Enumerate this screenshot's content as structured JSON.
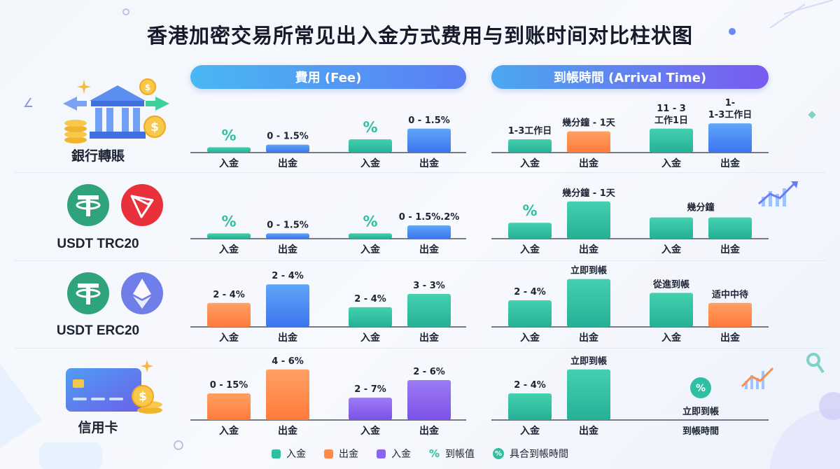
{
  "title": "香港加密交易所常见出入金方式费用与到账时间对比柱状图",
  "headers": {
    "fee": "費用 (Fee)",
    "time": "到帳時間 (Arrival Time)"
  },
  "rows": [
    {
      "label": "銀行轉賬"
    },
    {
      "label": "USDT TRC20"
    },
    {
      "label": "USDT ERC20"
    },
    {
      "label": "信用卡"
    }
  ],
  "legend": [
    {
      "kind": "swatch",
      "color": "#2fbfa3",
      "label": "入金"
    },
    {
      "kind": "swatch",
      "color": "#ff8a4c",
      "label": "出金"
    },
    {
      "kind": "swatch",
      "color": "#8a63ee",
      "label": "入金"
    },
    {
      "kind": "glyph",
      "glyph": "%",
      "label": "到帳值"
    },
    {
      "kind": "glyph-circle",
      "glyph": "%",
      "label": "具合到帳時間"
    }
  ],
  "colors": {
    "teal": "#2fbfa3",
    "blue": "#4b8cf5",
    "orange": "#ff8a4c",
    "purple": "#8a63ee"
  },
  "chart_data": {
    "type": "bar",
    "note_units": "Bar values are relative visual heights (no numeric axis printed); labels are the printed annotations.",
    "groups": [
      {
        "panel": "fee",
        "row": 0,
        "bars": [
          {
            "category": "入金",
            "label": "%",
            "label_style": "glyph",
            "color": "teal",
            "value": 0.1
          },
          {
            "category": "出金",
            "label": "0 - 1.5%",
            "color": "blue",
            "value": 0.15
          }
        ]
      },
      {
        "panel": "fee",
        "row": 0,
        "bars": [
          {
            "category": "入金",
            "label": "%",
            "label_style": "glyph",
            "color": "teal",
            "value": 0.25
          },
          {
            "category": "出金",
            "label": "0 - 1.5%",
            "color": "blue",
            "value": 0.45
          }
        ]
      },
      {
        "panel": "time",
        "row": 0,
        "bars": [
          {
            "category": "入金",
            "label": "1-3工作日",
            "color": "teal",
            "value": 0.25
          },
          {
            "category": "出金",
            "label": "幾分鐘 - 1天",
            "color": "orange",
            "value": 0.4
          }
        ]
      },
      {
        "panel": "time",
        "row": 0,
        "bars": [
          {
            "category": "入金",
            "label": "11 - 3\n工作1日",
            "color": "teal",
            "value": 0.45
          },
          {
            "category": "出金",
            "label": "1-\n1-3工作日",
            "color": "blue",
            "value": 0.55
          }
        ]
      },
      {
        "panel": "fee",
        "row": 1,
        "bars": [
          {
            "category": "入金",
            "label": "%",
            "label_style": "glyph",
            "color": "teal",
            "value": 0.1
          },
          {
            "category": "出金",
            "label": "0 - 1.5%",
            "color": "blue",
            "value": 0.1
          }
        ]
      },
      {
        "panel": "fee",
        "row": 1,
        "bars": [
          {
            "category": "入金",
            "label": "%",
            "label_style": "glyph",
            "color": "teal",
            "value": 0.1
          },
          {
            "category": "出金",
            "label": "0 - 1.5%.2%",
            "color": "blue",
            "value": 0.25
          }
        ]
      },
      {
        "panel": "time",
        "row": 1,
        "bars": [
          {
            "category": "入金",
            "label": "%",
            "label_style": "glyph",
            "color": "teal",
            "value": 0.3
          },
          {
            "category": "出金",
            "label": "幾分鐘 - 1天",
            "color": "teal",
            "value": 0.7
          }
        ]
      },
      {
        "panel": "time",
        "row": 1,
        "bars": [
          {
            "category": "入金",
            "label": "",
            "color": "teal",
            "value": 0.4
          },
          {
            "category": "出金",
            "label": "",
            "color": "teal",
            "value": 0.4
          }
        ],
        "group_label": "幾分鐘"
      },
      {
        "panel": "fee",
        "row": 2,
        "bars": [
          {
            "category": "入金",
            "label": "2 - 4%",
            "color": "orange",
            "value": 0.45
          },
          {
            "category": "出金",
            "label": "2 - 4%",
            "color": "blue",
            "value": 0.8
          }
        ]
      },
      {
        "panel": "fee",
        "row": 2,
        "bars": [
          {
            "category": "入金",
            "label": "2 - 4%",
            "color": "teal",
            "value": 0.37
          },
          {
            "category": "出金",
            "label": "3 - 3%",
            "color": "teal",
            "value": 0.62
          }
        ]
      },
      {
        "panel": "time",
        "row": 2,
        "bars": [
          {
            "category": "入金",
            "label": "2 - 4%",
            "color": "teal",
            "value": 0.5
          },
          {
            "category": "出金",
            "label": "立即到帳",
            "color": "teal",
            "value": 0.9
          }
        ]
      },
      {
        "panel": "time",
        "row": 2,
        "bars": [
          {
            "category": "入金",
            "label": "從進到帳",
            "color": "teal",
            "value": 0.64
          },
          {
            "category": "出金",
            "label": "适中中待",
            "color": "orange",
            "value": 0.45
          }
        ]
      },
      {
        "panel": "fee",
        "row": 3,
        "bars": [
          {
            "category": "入金",
            "label": "0 - 15%",
            "color": "orange",
            "value": 0.5
          },
          {
            "category": "出金",
            "label": "4 - 6%",
            "color": "orange",
            "value": 0.95
          }
        ]
      },
      {
        "panel": "fee",
        "row": 3,
        "bars": [
          {
            "category": "入金",
            "label": "2 - 7%",
            "color": "purple",
            "value": 0.42
          },
          {
            "category": "出金",
            "label": "2 - 6%",
            "color": "purple",
            "value": 0.75
          }
        ]
      },
      {
        "panel": "time",
        "row": 3,
        "bars": [
          {
            "category": "入金",
            "label": "2 - 4%",
            "color": "teal",
            "value": 0.5
          },
          {
            "category": "出金",
            "label": "立即到帳",
            "color": "teal",
            "value": 0.95
          }
        ]
      },
      {
        "panel": "time",
        "row": 3,
        "special": "badge",
        "badge_glyph": "%",
        "badge_label": "立即到帳",
        "axis_label": "到帳時間"
      }
    ]
  }
}
